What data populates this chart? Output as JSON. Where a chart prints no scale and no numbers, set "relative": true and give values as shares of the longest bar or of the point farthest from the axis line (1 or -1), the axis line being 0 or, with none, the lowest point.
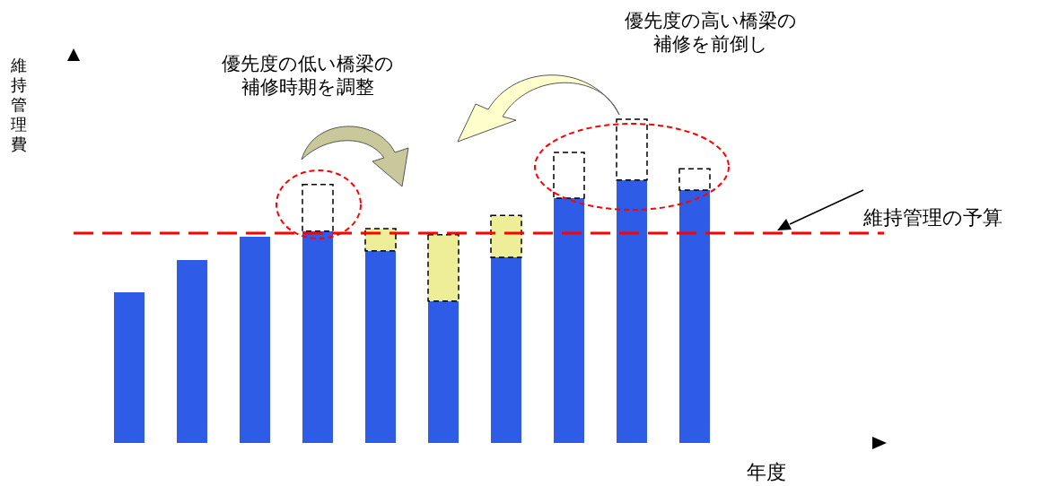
{
  "chart_data": {
    "type": "bar",
    "relative": true,
    "stacked": true,
    "xlabel": "年度",
    "ylabel": "維持管理費",
    "categories": [
      null,
      null,
      null,
      null,
      null,
      null,
      null,
      null,
      null,
      null
    ],
    "series": [
      {
        "color": "#2e5ce6",
        "values": [
          0.465,
          0.565,
          0.637,
          0.654,
          0.593,
          0.438,
          0.573,
          0.756,
          0.812,
          0.781
        ]
      },
      {
        "color": "#eeee99",
        "line_style": "dashed",
        "values": [
          null,
          null,
          null,
          null,
          0.069,
          0.205,
          0.13,
          null,
          null,
          null
        ]
      },
      {
        "color": "#ffffff",
        "line_style": "dashed",
        "values": [
          null,
          null,
          null,
          0.144,
          null,
          null,
          null,
          0.141,
          0.188,
          0.066
        ]
      }
    ],
    "ref_lines": [
      {
        "axis": "y",
        "value": 0.648,
        "label": "維持管理の予算",
        "color": "#ff0000",
        "line_style": "dashed"
      }
    ],
    "annotations": [
      "優先度の低い橋梁の補修時期を調整",
      "優先度の高い橋梁の補修を前倒し"
    ]
  }
}
